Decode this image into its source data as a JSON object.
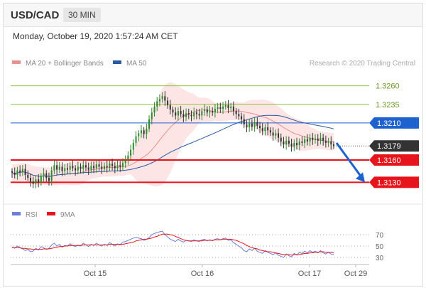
{
  "header": {
    "symbol": "USD/CAD",
    "timeframe": "30 MIN",
    "datetime": "Monday, October 19, 2020 1:57:24 AM CET"
  },
  "colors": {
    "up": "#2e8b2e",
    "down": "#333333",
    "resistance": "#8dc63f",
    "pivot": "#1e62d0",
    "support": "#e8141c",
    "ma20": "#e89090",
    "band": "#fde0e0",
    "ma50": "#2a5aa0",
    "rsi": "#6a7fd8",
    "rsi_ma": "#e8141c",
    "arrow": "#1e62d0",
    "last": "#333333"
  },
  "legend": {
    "ma20_label": "MA 20 + Bollinger Bands",
    "ma50_label": "MA 50",
    "credit": "Research © 2020 Trading Central"
  },
  "rsi_legend": {
    "rsi_label": "RSI",
    "ma_label": "9MA"
  },
  "chart_data": [
    {
      "type": "candlestick",
      "ylim": [
        1.3115,
        1.3275
      ],
      "x_ticks": [
        "Oct 15",
        "Oct 16",
        "Oct 17",
        "Oct 29"
      ],
      "levels": [
        {
          "value": 1.326,
          "label": "1.3260",
          "kind": "resistance"
        },
        {
          "value": 1.3235,
          "label": "1.3235",
          "kind": "resistance"
        },
        {
          "value": 1.321,
          "label": "1.3210",
          "kind": "pivot"
        },
        {
          "value": 1.3179,
          "label": "1.3179",
          "kind": "last"
        },
        {
          "value": 1.316,
          "label": "1.3160",
          "kind": "support"
        },
        {
          "value": 1.313,
          "label": "1.3130",
          "kind": "support"
        }
      ],
      "arrow": {
        "from": 1.3183,
        "to": 1.313
      },
      "close": [
        1.3143,
        1.314,
        1.3146,
        1.3144,
        1.3148,
        1.314,
        1.3136,
        1.3131,
        1.3128,
        1.3134,
        1.313,
        1.3138,
        1.3142,
        1.3136,
        1.3132,
        1.3146,
        1.3153,
        1.3147,
        1.3151,
        1.3145,
        1.3149,
        1.3147,
        1.3152,
        1.3149,
        1.3146,
        1.3151,
        1.3148,
        1.3153,
        1.315,
        1.3147,
        1.3152,
        1.3149,
        1.3154,
        1.3151,
        1.3148,
        1.3152,
        1.315,
        1.3155,
        1.3152,
        1.3149,
        1.3153,
        1.3151,
        1.3156,
        1.316,
        1.3166,
        1.3174,
        1.3183,
        1.3192,
        1.3196,
        1.32,
        1.3195,
        1.3202,
        1.3215,
        1.3224,
        1.3232,
        1.3239,
        1.3242,
        1.3246,
        1.324,
        1.3234,
        1.3228,
        1.3224,
        1.322,
        1.3226,
        1.3222,
        1.3218,
        1.3223,
        1.3221,
        1.3219,
        1.3224,
        1.3222,
        1.322,
        1.3226,
        1.3228,
        1.3224,
        1.3226,
        1.3224,
        1.3229,
        1.3231,
        1.3229,
        1.3232,
        1.3234,
        1.323,
        1.3232,
        1.3226,
        1.3222,
        1.3219,
        1.3215,
        1.3208,
        1.3204,
        1.3209,
        1.3205,
        1.3211,
        1.3206,
        1.3203,
        1.3199,
        1.3204,
        1.32,
        1.3197,
        1.3193,
        1.3196,
        1.319,
        1.3185,
        1.3181,
        1.3186,
        1.3182,
        1.3178,
        1.3183,
        1.318,
        1.3185,
        1.3183,
        1.3188,
        1.3185,
        1.319,
        1.3187,
        1.3189,
        1.3186,
        1.319,
        1.3186,
        1.3183,
        1.3185,
        1.3181,
        1.3179
      ]
    },
    {
      "type": "line",
      "ylim": [
        20,
        85
      ],
      "y_ticks": [
        70,
        50,
        30
      ],
      "series": [
        {
          "name": "RSI",
          "values": [
            48,
            46,
            50,
            47,
            45,
            42,
            44,
            40,
            41,
            46,
            43,
            49,
            47,
            44,
            46,
            52,
            55,
            50,
            53,
            48,
            51,
            50,
            54,
            51,
            49,
            52,
            50,
            55,
            52,
            49,
            53,
            51,
            55,
            52,
            50,
            53,
            51,
            56,
            53,
            50,
            54,
            52,
            57,
            58,
            60,
            62,
            64,
            65,
            64,
            63,
            60,
            62,
            65,
            70,
            72,
            74,
            75,
            76,
            70,
            66,
            62,
            60,
            58,
            62,
            59,
            57,
            60,
            59,
            58,
            61,
            59,
            58,
            61,
            62,
            59,
            61,
            59,
            62,
            63,
            61,
            63,
            64,
            60,
            61,
            56,
            53,
            50,
            47,
            42,
            40,
            45,
            42,
            46,
            41,
            39,
            37,
            42,
            39,
            37,
            35,
            38,
            34,
            32,
            30,
            36,
            33,
            31,
            37,
            34,
            39,
            37,
            41,
            38,
            42,
            39,
            41,
            38,
            42,
            38,
            36,
            39,
            36,
            35
          ]
        },
        {
          "name": "9MA",
          "values": [
            47,
            47,
            47,
            47,
            46,
            46,
            45,
            45,
            44,
            44,
            44,
            44,
            45,
            45,
            45,
            46,
            47,
            48,
            49,
            49,
            50,
            50,
            51,
            51,
            51,
            51,
            51,
            52,
            52,
            52,
            52,
            52,
            52,
            52,
            52,
            52,
            52,
            53,
            53,
            53,
            53,
            53,
            53,
            54,
            55,
            56,
            57,
            59,
            60,
            61,
            62,
            62,
            63,
            64,
            66,
            67,
            69,
            71,
            71,
            71,
            70,
            69,
            67,
            65,
            63,
            61,
            60,
            59,
            59,
            59,
            59,
            59,
            59,
            60,
            60,
            60,
            60,
            61,
            61,
            61,
            62,
            62,
            62,
            62,
            61,
            60,
            58,
            56,
            54,
            51,
            49,
            47,
            46,
            45,
            43,
            42,
            41,
            40,
            40,
            39,
            38,
            37,
            36,
            35,
            35,
            35,
            34,
            35,
            35,
            35,
            36,
            37,
            37,
            38,
            38,
            39,
            39,
            40,
            40,
            39,
            39,
            39,
            38
          ]
        }
      ]
    }
  ]
}
